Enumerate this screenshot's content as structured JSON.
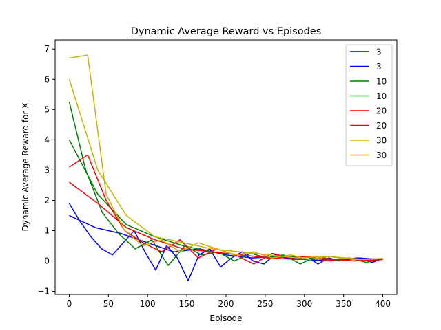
{
  "chart_data": {
    "type": "line",
    "title": "Dynamic Average Reward vs Episodes",
    "xlabel": "Episode",
    "ylabel": "Dynamic Average Reward for X",
    "xlim": [
      -18,
      418
    ],
    "ylim": [
      -1.1,
      7.3
    ],
    "xticks": [
      0,
      50,
      100,
      150,
      200,
      250,
      300,
      350,
      400
    ],
    "yticks": [
      -1,
      0,
      1,
      2,
      3,
      4,
      5,
      6,
      7
    ],
    "grid": false,
    "legend_position": "top-right",
    "series": [
      {
        "name": "3",
        "color": "#0000ff",
        "values": [
          1.9,
          1.3,
          0.8,
          0.4,
          0.2,
          0.6,
          1.0,
          0.3,
          -0.3,
          0.5,
          0.1,
          -0.65,
          0.2,
          0.4,
          -0.2,
          0.1,
          0.3,
          0.0,
          -0.1,
          0.2,
          0.1,
          0.05,
          0.15,
          -0.1,
          0.1,
          0.0,
          0.05,
          0.1,
          -0.05,
          0.08
        ]
      },
      {
        "name": "3",
        "color": "#0000ff",
        "values": [
          1.5,
          1.1,
          0.9,
          0.6,
          0.3,
          0.4,
          0.2,
          0.1,
          0.15,
          0.05,
          0.0,
          0.1,
          0.05
        ]
      },
      {
        "name": "10",
        "color": "#008000",
        "values": [
          5.25,
          3.0,
          1.6,
          0.9,
          0.4,
          0.7,
          -0.15,
          0.5,
          0.2,
          0.3,
          0.0,
          0.25,
          0.1,
          0.2,
          -0.1,
          0.15,
          0.05,
          0.1,
          -0.05,
          0.08
        ]
      },
      {
        "name": "10",
        "color": "#008000",
        "values": [
          4.0,
          2.2,
          1.2,
          0.8,
          0.5,
          0.3,
          0.2,
          0.1,
          0.15,
          0.05,
          0.0,
          0.05
        ]
      },
      {
        "name": "20",
        "color": "#ff0000",
        "values": [
          3.1,
          3.5,
          2.0,
          1.0,
          0.6,
          0.3,
          0.7,
          0.1,
          0.4,
          0.2,
          -0.1,
          0.25,
          0.1,
          0.15,
          0.0,
          0.1,
          0.05,
          0.08
        ]
      },
      {
        "name": "20",
        "color": "#ff0000",
        "values": [
          2.6,
          1.9,
          1.1,
          0.7,
          0.4,
          0.3,
          0.2,
          0.1,
          0.05,
          0.08,
          0.0,
          0.05
        ]
      },
      {
        "name": "30",
        "color": "#c8b400",
        "values": [
          6.7,
          6.8,
          2.2,
          1.0,
          0.5,
          0.7,
          0.3,
          0.6,
          0.4,
          0.2,
          0.3,
          0.1,
          0.2,
          0.05,
          0.15,
          0.1,
          0.05,
          0.08
        ]
      },
      {
        "name": "30",
        "color": "#c8b400",
        "values": [
          6.0,
          3.0,
          1.5,
          0.8,
          0.6,
          0.4,
          0.3,
          0.2,
          0.1,
          0.15,
          0.05,
          0.08
        ]
      }
    ]
  }
}
